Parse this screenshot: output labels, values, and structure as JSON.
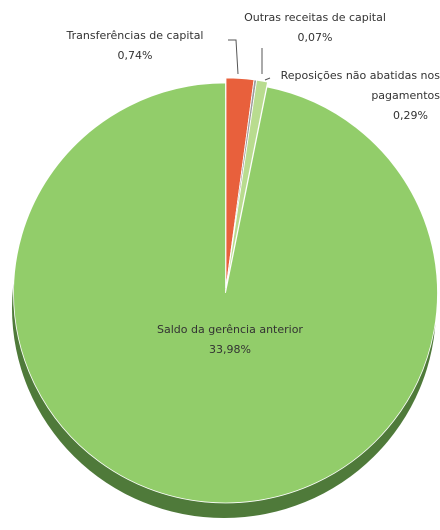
{
  "chart_data": {
    "type": "pie",
    "categories": [
      "Transferências de capital",
      "Outras receitas de capital",
      "Reposições não abatidas nos pagamentos",
      "Saldo da gerência  anterior"
    ],
    "values": [
      0.74,
      0.07,
      0.29,
      33.98
    ],
    "value_labels": [
      "0,74%",
      "0,07%",
      "0,29%",
      "33,98%"
    ],
    "colors": [
      "#e8603c",
      "#9c9c9c",
      "#b9dc8f",
      "#92cd6a"
    ]
  }
}
